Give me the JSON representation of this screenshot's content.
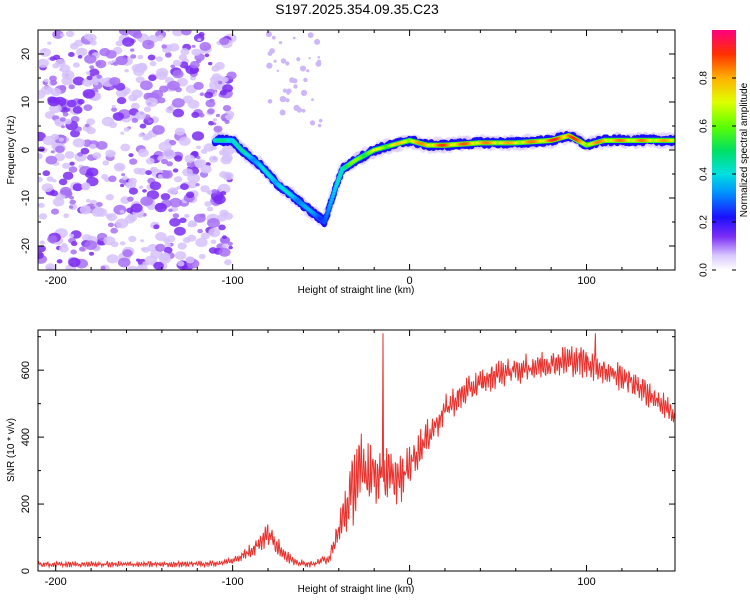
{
  "title": "S197.2025.354.09.35.C23",
  "colors": {
    "snr_line": "#e8322e",
    "axis": "#000000",
    "scatter": "#8a3cf0",
    "background": "#ffffff"
  },
  "chart_data": [
    {
      "type": "heatmap",
      "name": "spectrogram",
      "xlabel": "Height of straight line (km)",
      "ylabel": "Frequency (Hz)",
      "xlim": [
        -210,
        150
      ],
      "ylim": [
        -25,
        25
      ],
      "x_ticks": [
        -200,
        -100,
        0,
        100
      ],
      "x_tick_labels": [
        "-200",
        "-100",
        "0",
        "100"
      ],
      "y_ticks": [
        -20,
        -10,
        0,
        10,
        20
      ],
      "y_tick_labels": [
        "-20",
        "-10",
        "0",
        "10",
        "20"
      ],
      "ridge": {
        "x": [
          -110,
          -100,
          -95,
          -85,
          -75,
          -65,
          -55,
          -48,
          -42,
          -38,
          -30,
          -20,
          -10,
          0,
          10,
          20,
          40,
          60,
          80,
          90,
          100,
          110,
          130,
          150
        ],
        "y": [
          2,
          2,
          0,
          -3,
          -7,
          -10,
          -13,
          -15,
          -8,
          -4,
          -2,
          0,
          1,
          2,
          1,
          1,
          1.5,
          1.5,
          2,
          3,
          1,
          2,
          2,
          2
        ],
        "intensity": [
          0.45,
          0.5,
          0.45,
          0.4,
          0.45,
          0.4,
          0.35,
          0.3,
          0.4,
          0.55,
          0.65,
          0.7,
          0.75,
          0.8,
          0.85,
          0.9,
          0.85,
          0.8,
          0.9,
          0.95,
          0.8,
          0.85,
          0.85,
          0.8
        ]
      },
      "noise_region": [
        -210,
        -100
      ]
    },
    {
      "type": "line",
      "name": "snr",
      "xlabel": "Height of straight line (km)",
      "ylabel": "SNR (10 * v/v)",
      "xlim": [
        -210,
        150
      ],
      "ylim": [
        0,
        720
      ],
      "x_ticks": [
        -200,
        -100,
        0,
        100
      ],
      "x_tick_labels": [
        "-200",
        "-100",
        "0",
        "100"
      ],
      "y_ticks": [
        0,
        200,
        400,
        600
      ],
      "y_tick_labels": [
        "0",
        "200",
        "400",
        "600"
      ],
      "envelope": {
        "x": [
          -210,
          -150,
          -110,
          -100,
          -90,
          -80,
          -72,
          -65,
          -55,
          -45,
          -40,
          -35,
          -30,
          -25,
          -20,
          -15,
          -10,
          -5,
          0,
          10,
          20,
          30,
          40,
          50,
          60,
          70,
          80,
          90,
          100,
          110,
          120,
          130,
          140,
          150
        ],
        "y": [
          20,
          20,
          22,
          30,
          60,
          110,
          60,
          25,
          20,
          40,
          120,
          200,
          280,
          300,
          300,
          280,
          280,
          270,
          320,
          400,
          480,
          530,
          560,
          590,
          600,
          610,
          620,
          630,
          625,
          600,
          580,
          550,
          510,
          460
        ],
        "amplitude": [
          10,
          10,
          10,
          12,
          25,
          40,
          30,
          12,
          10,
          20,
          60,
          110,
          130,
          120,
          110,
          100,
          90,
          80,
          70,
          55,
          50,
          45,
          45,
          45,
          45,
          45,
          45,
          50,
          55,
          50,
          45,
          45,
          45,
          45
        ]
      },
      "spikes": [
        {
          "x": -15,
          "y": 710
        },
        {
          "x": 105,
          "y": 710
        }
      ]
    }
  ],
  "colorbar": {
    "label": "Normalized spectral amplitude",
    "ticks": [
      0.0,
      0.2,
      0.4,
      0.6,
      0.8
    ],
    "tick_labels": [
      "0.0",
      "0.2",
      "0.4",
      "0.6",
      "0.8"
    ],
    "range": [
      0,
      1
    ]
  }
}
